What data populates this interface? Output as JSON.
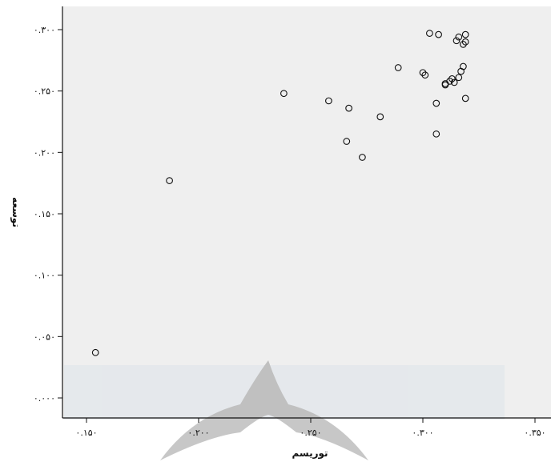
{
  "chart_data": {
    "type": "scatter",
    "xlabel": "توریسم",
    "ylabel": "توسعه",
    "xlim": [
      0.14,
      0.35
    ],
    "ylim": [
      0.0,
      0.31
    ],
    "x_ticks": [
      {
        "value": 0.15,
        "label": "۰.۱۵۰"
      },
      {
        "value": 0.2,
        "label": "۰.۲۰۰"
      },
      {
        "value": 0.25,
        "label": "۰.۲۵۰"
      },
      {
        "value": 0.3,
        "label": "۰.۳۰۰"
      },
      {
        "value": 0.35,
        "label": "۰.۳۵۰"
      }
    ],
    "y_ticks": [
      {
        "value": 0.0,
        "label": "۰.۰۰۰"
      },
      {
        "value": 0.05,
        "label": "۰.۰۵۰"
      },
      {
        "value": 0.1,
        "label": "۰.۱۰۰"
      },
      {
        "value": 0.15,
        "label": "۰.۱۵۰"
      },
      {
        "value": 0.2,
        "label": "۰.۲۰۰"
      },
      {
        "value": 0.25,
        "label": "۰.۲۵۰"
      },
      {
        "value": 0.3,
        "label": "۰.۳۰۰"
      }
    ],
    "grid": false,
    "colors": {
      "plot_bg": "#efefef",
      "marker": "#111111",
      "axis": "#111111"
    },
    "points": [
      {
        "x": 0.154,
        "y": 0.037
      },
      {
        "x": 0.187,
        "y": 0.177
      },
      {
        "x": 0.238,
        "y": 0.248
      },
      {
        "x": 0.258,
        "y": 0.242
      },
      {
        "x": 0.266,
        "y": 0.209
      },
      {
        "x": 0.267,
        "y": 0.236
      },
      {
        "x": 0.273,
        "y": 0.196
      },
      {
        "x": 0.281,
        "y": 0.229
      },
      {
        "x": 0.289,
        "y": 0.269
      },
      {
        "x": 0.3,
        "y": 0.265
      },
      {
        "x": 0.301,
        "y": 0.263
      },
      {
        "x": 0.303,
        "y": 0.297
      },
      {
        "x": 0.306,
        "y": 0.215
      },
      {
        "x": 0.306,
        "y": 0.24
      },
      {
        "x": 0.307,
        "y": 0.296
      },
      {
        "x": 0.31,
        "y": 0.255
      },
      {
        "x": 0.31,
        "y": 0.256
      },
      {
        "x": 0.312,
        "y": 0.258
      },
      {
        "x": 0.313,
        "y": 0.26
      },
      {
        "x": 0.314,
        "y": 0.257
      },
      {
        "x": 0.315,
        "y": 0.291
      },
      {
        "x": 0.316,
        "y": 0.294
      },
      {
        "x": 0.316,
        "y": 0.261
      },
      {
        "x": 0.317,
        "y": 0.266
      },
      {
        "x": 0.318,
        "y": 0.288
      },
      {
        "x": 0.318,
        "y": 0.27
      },
      {
        "x": 0.319,
        "y": 0.29
      },
      {
        "x": 0.319,
        "y": 0.296
      },
      {
        "x": 0.319,
        "y": 0.244
      }
    ]
  }
}
